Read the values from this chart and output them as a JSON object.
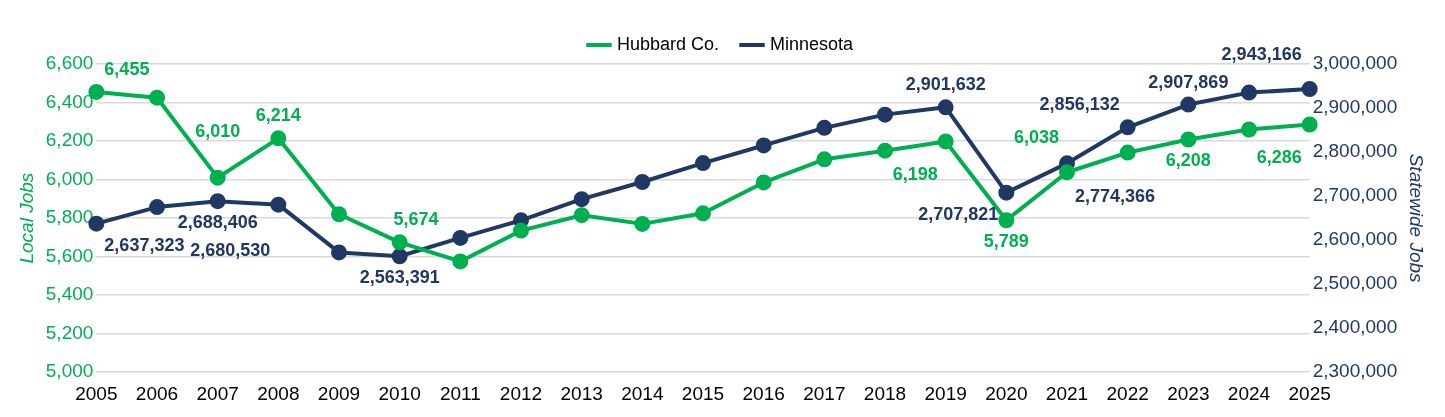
{
  "chart_data": {
    "type": "line",
    "categories": [
      "2005",
      "2006",
      "2007",
      "2008",
      "2009",
      "2010",
      "2011",
      "2012",
      "2013",
      "2014",
      "2015",
      "2016",
      "2017",
      "2018",
      "2019",
      "2020",
      "2021",
      "2022",
      "2023",
      "2024",
      "2025"
    ],
    "ylabel": "Local Jobs",
    "y2label": "Statewide Jobs",
    "ylim": [
      5000,
      6600
    ],
    "yticks": [
      {
        "value": 5000,
        "label": "5,000"
      },
      {
        "value": 5200,
        "label": "5,200"
      },
      {
        "value": 5400,
        "label": "5,400"
      },
      {
        "value": 5600,
        "label": "5,600"
      },
      {
        "value": 5800,
        "label": "5,800"
      },
      {
        "value": 6000,
        "label": "6,000"
      },
      {
        "value": 6200,
        "label": "6,200"
      },
      {
        "value": 6400,
        "label": "6,400"
      },
      {
        "value": 6600,
        "label": "6,600"
      }
    ],
    "y2lim": [
      2300000,
      3000000
    ],
    "y2ticks": [
      {
        "value": 2300000,
        "label": "2,300,000"
      },
      {
        "value": 2400000,
        "label": "2,400,000"
      },
      {
        "value": 2500000,
        "label": "2,500,000"
      },
      {
        "value": 2600000,
        "label": "2,600,000"
      },
      {
        "value": 2700000,
        "label": "2,700,000"
      },
      {
        "value": 2800000,
        "label": "2,800,000"
      },
      {
        "value": 2900000,
        "label": "2,900,000"
      },
      {
        "value": 3000000,
        "label": "3,000,000"
      }
    ],
    "grid": "y",
    "legend": "top",
    "marker": "circle",
    "line_style": "solid",
    "series": [
      {
        "name": "Hubbard Co.",
        "color": "#00b050",
        "values": [
          6455,
          6425,
          6010,
          6214,
          5820,
          5674,
          5575,
          5735,
          5815,
          5770,
          5825,
          5985,
          6105,
          6150,
          6198,
          5789,
          6038,
          6140,
          6208,
          6260,
          6286
        ],
        "value_labels": [
          "6,455",
          null,
          "6,010",
          "6,214",
          null,
          "5,674",
          null,
          null,
          null,
          null,
          null,
          null,
          null,
          null,
          "6,198",
          "5,789",
          "6,038",
          null,
          "6,208",
          null,
          "6,286"
        ]
      },
      {
        "name": "Minnesota",
        "color": "#203864",
        "axis": "y2",
        "values": [
          2637323,
          2675000,
          2688406,
          2680530,
          2572000,
          2563391,
          2605000,
          2645000,
          2693000,
          2732000,
          2775000,
          2815000,
          2855000,
          2885000,
          2901632,
          2707821,
          2774366,
          2856132,
          2907869,
          2935000,
          2943166
        ],
        "value_labels": [
          "2,637,323",
          null,
          "2,688,406",
          "2,680,530",
          null,
          "2,563,391",
          null,
          null,
          null,
          null,
          null,
          null,
          null,
          null,
          "2,901,632",
          "2,707,821",
          "2,774,366",
          "2,856,132",
          "2,907,869",
          null,
          "2,943,166"
        ]
      }
    ]
  }
}
